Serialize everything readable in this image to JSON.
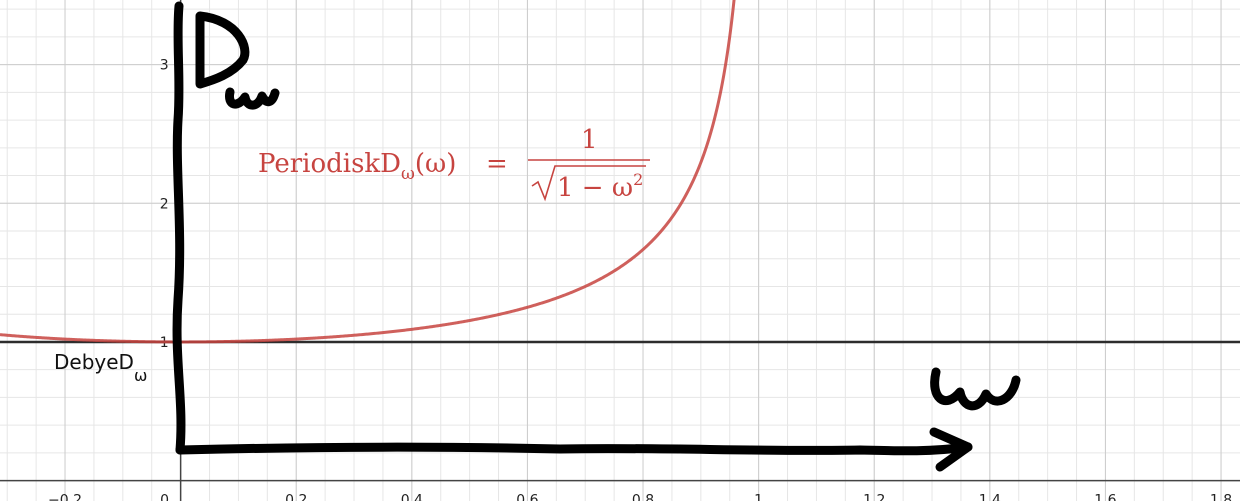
{
  "chart_data": {
    "type": "line",
    "xlim": [
      -0.3125,
      1.8328
    ],
    "ylim": [
      -0.147,
      3.466
    ],
    "grid": true,
    "x_ticks": [
      -0.2,
      0,
      0.2,
      0.4,
      0.6,
      0.8,
      1,
      1.2,
      1.4,
      1.6,
      1.8
    ],
    "x_tick_labels": [
      "−0.2",
      "0",
      "0.2",
      "0.4",
      "0.6",
      "0.8",
      "1",
      "1.2",
      "1.4",
      "1.6",
      "1.8"
    ],
    "y_ticks": [
      1,
      2,
      3
    ],
    "y_tick_labels": [
      "1",
      "2",
      "3"
    ],
    "series": [
      {
        "name": "PeriodiskDω(ω)",
        "color": "#c74440",
        "formula": "1/sqrt(1-ω²)",
        "x": [
          -0.3,
          -0.2,
          -0.1,
          0,
          0.1,
          0.2,
          0.3,
          0.4,
          0.5,
          0.6,
          0.7,
          0.8,
          0.85,
          0.9,
          0.93,
          0.95
        ],
        "y": [
          1.048,
          1.021,
          1.005,
          1.0,
          1.005,
          1.021,
          1.048,
          1.091,
          1.155,
          1.25,
          1.4,
          1.667,
          1.898,
          2.294,
          2.72,
          3.203
        ]
      },
      {
        "name": "DebyeDω",
        "color": "#2d2d2d",
        "x": [
          -0.3125,
          1.8328
        ],
        "y": [
          1,
          1
        ]
      }
    ],
    "annotations": {
      "equation_name": "PeriodiskD",
      "equation_sub": "ω",
      "equation_arg": "(ω)",
      "equation_eq": "=",
      "equation_num": "1",
      "equation_den": "1 − ω",
      "equation_den_exp": "2",
      "debye_label": "DebyeD",
      "debye_sub": "ω"
    }
  },
  "colors": {
    "curve": "#c74440",
    "hline": "#2d2d2d",
    "ink": "#000000",
    "grid_minor": "#e6e6e6",
    "grid_major": "#cccccc",
    "axis": "#444444"
  }
}
